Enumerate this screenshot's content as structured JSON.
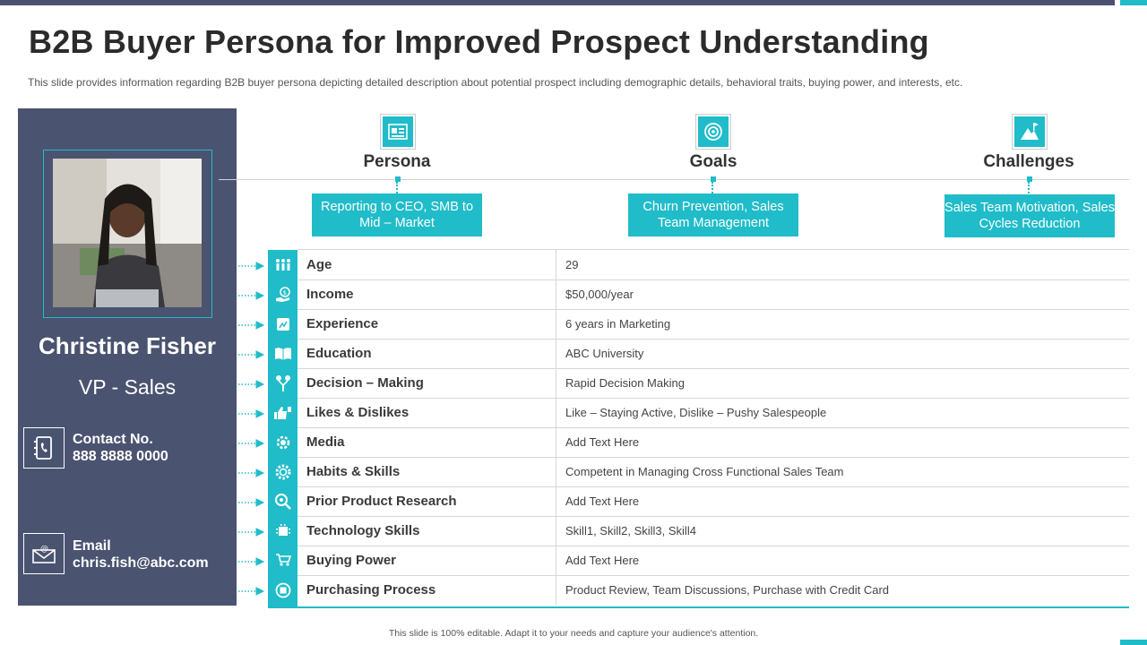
{
  "slide": {
    "title": "B2B Buyer Persona for Improved Prospect Understanding",
    "subtitle": "This slide provides information regarding B2B buyer persona depicting detailed description about potential prospect including demographic details, behavioral traits, buying power, and interests, etc.",
    "footer": "This slide is 100% editable.  Adapt it to your needs and capture your audience's attention."
  },
  "profile": {
    "name": "Christine Fisher",
    "role": "VP - Sales",
    "contact_label": "Contact No.",
    "contact_value": "888 8888 0000",
    "email_label": "Email",
    "email_value": "chris.fish@abc.com"
  },
  "columns": [
    {
      "heading": "Persona",
      "text": "Reporting to CEO, SMB to Mid  – Market",
      "icon": "id-card-icon"
    },
    {
      "heading": "Goals",
      "text": "Churn Prevention, Sales Team Management",
      "icon": "target-icon"
    },
    {
      "heading": "Challenges",
      "text": "Sales Team Motivation, Sales Cycles Reduction",
      "icon": "mountain-climb-icon"
    }
  ],
  "rows": [
    {
      "label": "Age",
      "value": "29",
      "icon": "people-icon"
    },
    {
      "label": "Income",
      "value": "$50,000/year",
      "icon": "money-hand-icon"
    },
    {
      "label": "Experience",
      "value": "6 years in Marketing",
      "icon": "chart-frame-icon"
    },
    {
      "label": "Education",
      "value": "ABC University",
      "icon": "book-icon"
    },
    {
      "label": "Decision – Making",
      "value": "Rapid Decision Making",
      "icon": "decision-tree-icon"
    },
    {
      "label": "Likes & Dislikes",
      "value": "Like – Staying Active, Dislike – Pushy Salespeople",
      "icon": "thumbs-icon"
    },
    {
      "label": "Media",
      "value": "Add Text Here",
      "icon": "media-gear-icon"
    },
    {
      "label": "Habits & Skills",
      "value": "Competent in Managing Cross Functional Sales Team",
      "icon": "cog-icon"
    },
    {
      "label": "Prior Product Research",
      "value": "Add Text Here",
      "icon": "magnifier-icon"
    },
    {
      "label": "Technology Skills",
      "value": "Skill1, Skill2, Skill3, Skill4",
      "icon": "tech-chip-icon"
    },
    {
      "label": "Buying Power",
      "value": "Add Text Here",
      "icon": "cart-hand-icon"
    },
    {
      "label": "Purchasing Process",
      "value": "Product Review,  Team Discussions, Purchase with Credit Card",
      "icon": "process-cycle-icon"
    }
  ],
  "colors": {
    "accent": "#20bcc9",
    "panel": "#4a5370",
    "topbar": "#4a5270"
  }
}
